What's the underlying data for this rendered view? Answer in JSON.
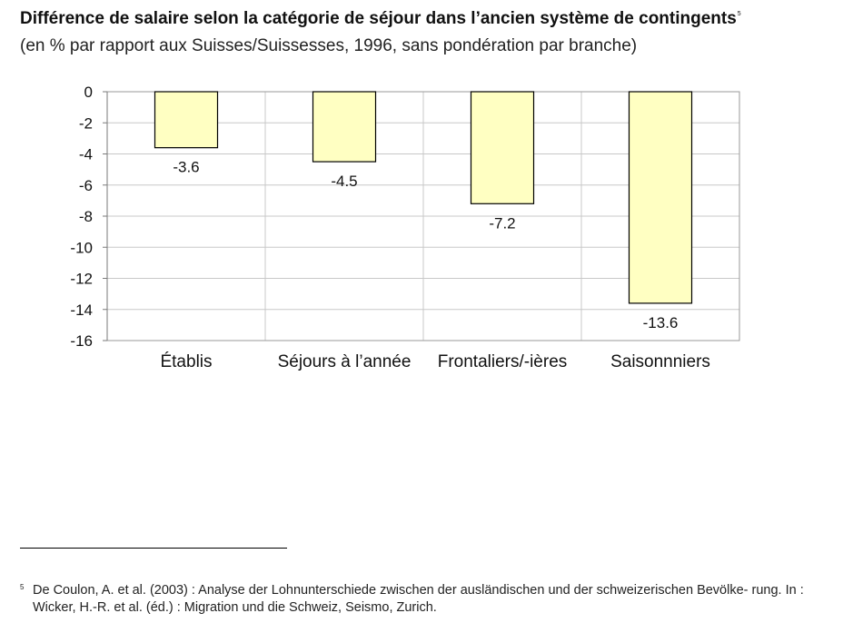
{
  "title": "Différence de salaire selon la catégorie de séjour dans l’ancien système de contingents",
  "footnote_marker": "5",
  "subtitle": "(en % par rapport aux Suisses/Suissesses, 1996, sans pondération par branche)",
  "chart_data": {
    "type": "bar",
    "categories": [
      "Établis",
      "Séjours à l’année",
      "Frontaliers/-ières",
      "Saisonnniers"
    ],
    "values": [
      -3.6,
      -4.5,
      -7.2,
      -13.6
    ],
    "data_labels": [
      "-3.6",
      "-4.5",
      "-7.2",
      "-13.6"
    ],
    "ylim": [
      -16,
      0
    ],
    "yticks": [
      "0",
      "-2",
      "-4",
      "-6",
      "-8",
      "-10",
      "-12",
      "-14",
      "-16"
    ],
    "grid": "horizontal and vertical",
    "bar_color": "#ffffc2",
    "bar_border": "#000000",
    "grid_color": "#c8c8c8"
  },
  "footnote": {
    "marker": "5",
    "text": "De Coulon, A. et al. (2003) : Analyse der Lohnunterschiede zwischen der ausländischen und der schweizerischen Bevölke- rung. In : Wicker, H.-R. et al. (éd.) : Migration und die Schweiz, Seismo, Zurich."
  }
}
